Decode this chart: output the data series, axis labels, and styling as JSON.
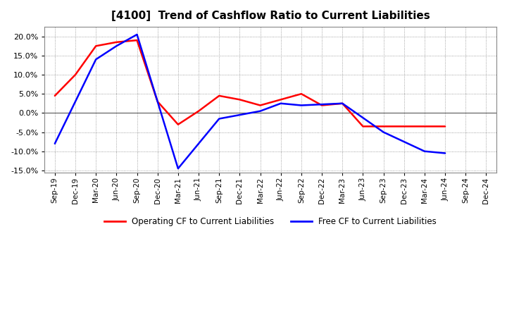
{
  "title": "[4100]  Trend of Cashflow Ratio to Current Liabilities",
  "x_labels": [
    "Sep-19",
    "Dec-19",
    "Mar-20",
    "Jun-20",
    "Sep-20",
    "Dec-20",
    "Mar-21",
    "Jun-21",
    "Sep-21",
    "Dec-21",
    "Mar-22",
    "Jun-22",
    "Sep-22",
    "Dec-22",
    "Mar-23",
    "Jun-23",
    "Sep-23",
    "Dec-23",
    "Mar-24",
    "Jun-24",
    "Sep-24",
    "Dec-24"
  ],
  "op_x": [
    0,
    1,
    2,
    3,
    4,
    5,
    6,
    7,
    8,
    9,
    10,
    11,
    12,
    13,
    14,
    15,
    16,
    17,
    18,
    19
  ],
  "op_y": [
    4.5,
    10.0,
    17.5,
    18.5,
    19.0,
    3.0,
    -3.0,
    0.5,
    4.5,
    3.5,
    2.0,
    3.5,
    5.0,
    2.0,
    2.5,
    -3.5,
    -3.5,
    -3.5,
    -3.5,
    -3.5
  ],
  "fr_x": [
    0,
    2,
    3,
    4,
    6,
    8,
    10,
    11,
    12,
    14,
    16,
    18,
    19
  ],
  "fr_y": [
    -8.0,
    14.0,
    17.5,
    20.5,
    -14.5,
    -1.5,
    0.5,
    2.5,
    2.0,
    2.5,
    -5.0,
    -10.0,
    -10.5
  ],
  "ylim": [
    -15.5,
    22.5
  ],
  "yticks": [
    -15.0,
    -10.0,
    -5.0,
    0.0,
    5.0,
    10.0,
    15.0,
    20.0
  ],
  "operating_color": "#ff0000",
  "free_color": "#0000ff",
  "background_color": "#ffffff",
  "plot_bg_color": "#ffffff",
  "grid_color": "#888888",
  "legend_op": "Operating CF to Current Liabilities",
  "legend_free": "Free CF to Current Liabilities"
}
